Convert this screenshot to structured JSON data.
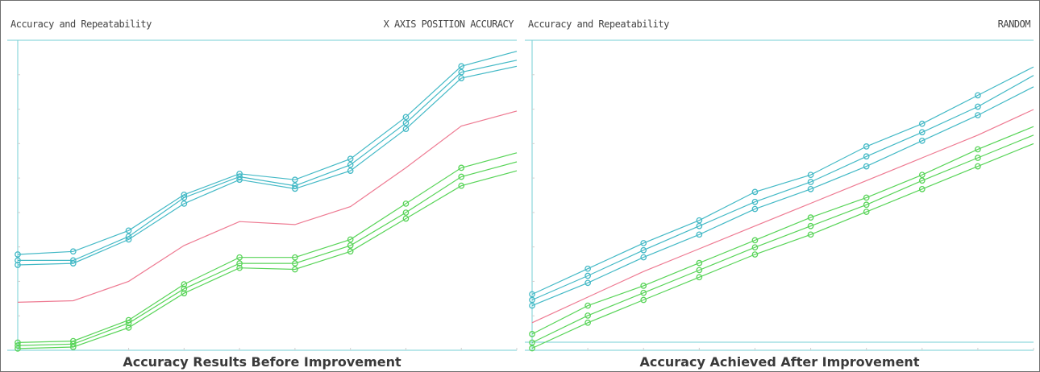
{
  "captions": {
    "left": "Accuracy Results Before Improvement",
    "right": "Accuracy Achieved After Improvement"
  },
  "chart_data": [
    {
      "type": "line",
      "title": "Accuracy and Repeatability",
      "subtitle": "X AXIS POSITION ACCURACY",
      "xlabel": "",
      "ylabel": "",
      "x": [
        0,
        1,
        2,
        3,
        4,
        5,
        6,
        7,
        8,
        9
      ],
      "ylim": [
        0,
        100
      ],
      "grid": false,
      "colors": {
        "upper": "#43b9c6",
        "mean": "#ee7a92",
        "lower": "#58d458",
        "frame": "#76cfd4"
      },
      "series": [
        {
          "group": "upper",
          "values": [
            31,
            32,
            39,
            51,
            58,
            56,
            63,
            77,
            94,
            99
          ]
        },
        {
          "group": "upper",
          "values": [
            29,
            29,
            37,
            50,
            57,
            54,
            61,
            75,
            92,
            96
          ]
        },
        {
          "group": "upper",
          "values": [
            27.5,
            28,
            36,
            48,
            56,
            53,
            59,
            73,
            90,
            94
          ]
        },
        {
          "group": "mean",
          "values": [
            15,
            15.5,
            22,
            34,
            42,
            41,
            47,
            60,
            74,
            79
          ]
        },
        {
          "group": "lower",
          "values": [
            1.5,
            2,
            9,
            21,
            30,
            30,
            36,
            48,
            60,
            65
          ]
        },
        {
          "group": "lower",
          "values": [
            0.5,
            1,
            8,
            19.5,
            28,
            28,
            34,
            45,
            57,
            62
          ]
        },
        {
          "group": "lower",
          "values": [
            -0.5,
            0,
            6.5,
            18,
            26.5,
            26,
            32,
            43,
            54,
            59
          ]
        }
      ]
    },
    {
      "type": "line",
      "title": "Accuracy and Repeatability",
      "subtitle": "RANDOM",
      "xlabel": "",
      "ylabel": "",
      "x": [
        0,
        1,
        2,
        3,
        4,
        5,
        6,
        7,
        8,
        9
      ],
      "ylim": [
        0,
        100
      ],
      "grid": false,
      "colors": {
        "upper": "#43b9c6",
        "mean": "#ee7a92",
        "lower": "#58d458",
        "frame": "#76cfd4"
      },
      "series": [
        {
          "group": "upper",
          "values": [
            18,
            27,
            36,
            44,
            54,
            60,
            70,
            78,
            88,
            98
          ]
        },
        {
          "group": "upper",
          "values": [
            16,
            24.5,
            33.5,
            42,
            50.5,
            57.5,
            66.5,
            75,
            84,
            95
          ]
        },
        {
          "group": "upper",
          "values": [
            14,
            22,
            31,
            39,
            48,
            55,
            63,
            72,
            81,
            91
          ]
        },
        {
          "group": "mean",
          "values": [
            8,
            17,
            26,
            34,
            42,
            50,
            58,
            66,
            74,
            83
          ]
        },
        {
          "group": "lower",
          "values": [
            4,
            14,
            21,
            29,
            37,
            45,
            52,
            60,
            69,
            77
          ]
        },
        {
          "group": "lower",
          "values": [
            1,
            10.5,
            18.5,
            26.5,
            34.5,
            42,
            49.5,
            58,
            66,
            74
          ]
        },
        {
          "group": "lower",
          "values": [
            -1,
            8,
            16,
            24,
            32,
            39,
            47,
            55,
            63,
            71
          ]
        }
      ]
    }
  ]
}
